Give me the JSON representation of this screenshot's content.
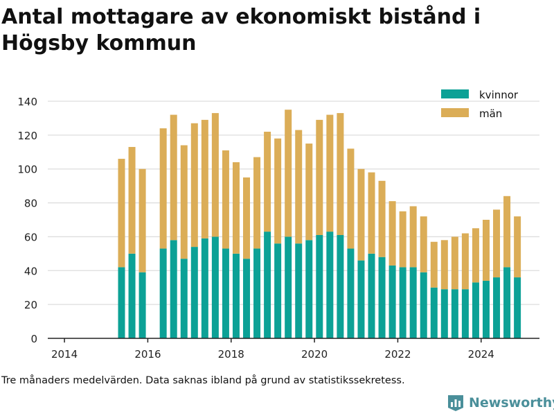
{
  "title": "Antal mottagare av ekonomiskt bistånd i Högsby kommun",
  "footnote": "Tre månaders medelvärden. Data saknas ibland på grund av statistikssekretess.",
  "brand": {
    "name": "Newsworthy",
    "icon": "bar-chart-logo-icon"
  },
  "colors": {
    "kvinnor": "#0ca196",
    "man": "#dbad57",
    "grid": "#dddddd",
    "axis": "#222222",
    "brand": "#4a8f9a"
  },
  "chart_data": {
    "type": "bar",
    "stacked": true,
    "xlim": [
      2013.6,
      2025.4
    ],
    "ylim": [
      0,
      145
    ],
    "x_ticks": [
      "2014",
      "2016",
      "2018",
      "2020",
      "2022",
      "2024"
    ],
    "y_ticks": [
      "0",
      "20",
      "40",
      "60",
      "80",
      "100",
      "120",
      "140"
    ],
    "grid": true,
    "legend_position": "top-right",
    "legend": [
      "kvinnor",
      "män"
    ],
    "x": [
      2015.37,
      2015.62,
      2015.87,
      2016.37,
      2016.62,
      2016.87,
      2017.12,
      2017.37,
      2017.62,
      2017.87,
      2018.12,
      2018.37,
      2018.62,
      2018.87,
      2019.12,
      2019.37,
      2019.62,
      2019.87,
      2020.12,
      2020.37,
      2020.62,
      2020.87,
      2021.12,
      2021.37,
      2021.62,
      2021.87,
      2022.12,
      2022.37,
      2022.62,
      2022.87,
      2023.12,
      2023.37,
      2023.62,
      2023.87,
      2024.12,
      2024.37,
      2024.62,
      2024.87
    ],
    "series": [
      {
        "name": "kvinnor",
        "values": [
          42,
          50,
          39,
          53,
          58,
          47,
          54,
          59,
          60,
          53,
          50,
          47,
          53,
          63,
          56,
          60,
          56,
          58,
          61,
          63,
          61,
          53,
          46,
          50,
          48,
          43,
          42,
          42,
          39,
          30,
          29,
          29,
          29,
          33,
          34,
          36,
          42,
          36
        ]
      },
      {
        "name": "män",
        "values": [
          64,
          63,
          61,
          71,
          74,
          67,
          73,
          70,
          73,
          58,
          54,
          48,
          54,
          59,
          62,
          75,
          67,
          57,
          68,
          69,
          72,
          59,
          54,
          48,
          45,
          38,
          33,
          36,
          33,
          27,
          29,
          31,
          33,
          32,
          36,
          40,
          42,
          36
        ]
      }
    ]
  }
}
